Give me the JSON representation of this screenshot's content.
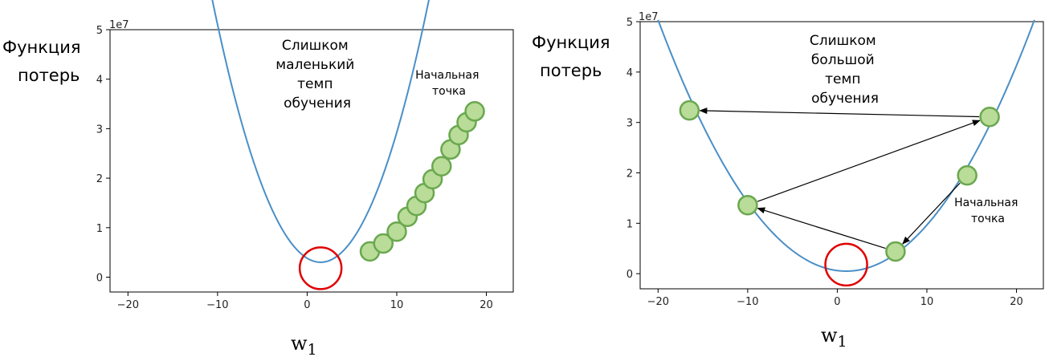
{
  "chart_data": [
    {
      "type": "line",
      "function": "loss",
      "curve": {
        "x_start": -20,
        "x_end": 22,
        "vertex_x": 1.5,
        "vertex_y": 0.3,
        "scale": 0.0363
      },
      "xlim": [
        -22,
        23
      ],
      "ylim": [
        -0.3,
        5
      ],
      "xticks": [
        -20,
        -10,
        0,
        10,
        20
      ],
      "xtick_labels": [
        "−20",
        "−10",
        "0",
        "10",
        "20"
      ],
      "yticks": [
        0,
        1,
        2,
        3,
        4,
        5
      ],
      "ytick_labels": [
        "0",
        "1",
        "2",
        "3",
        "4",
        "5"
      ],
      "scale_label": "1e7",
      "ylabel_lines": [
        "Функция",
        "потерь"
      ],
      "xlabel": "w",
      "xlabel_sub": "1",
      "annotation_lines": [
        "Слишком",
        "маленький",
        "темп",
        "обучения"
      ],
      "start_label_lines": [
        "Начальная",
        "точка"
      ],
      "minimum_marker": {
        "x": 1.5,
        "y": 0.18
      },
      "points": [
        {
          "x": 7.0,
          "y": 0.52
        },
        {
          "x": 8.5,
          "y": 0.68
        },
        {
          "x": 10.0,
          "y": 0.92
        },
        {
          "x": 11.2,
          "y": 1.22
        },
        {
          "x": 12.2,
          "y": 1.44
        },
        {
          "x": 13.1,
          "y": 1.7
        },
        {
          "x": 14.0,
          "y": 1.98
        },
        {
          "x": 15.0,
          "y": 2.24
        },
        {
          "x": 16.0,
          "y": 2.58
        },
        {
          "x": 16.9,
          "y": 2.87
        },
        {
          "x": 17.8,
          "y": 3.13
        },
        {
          "x": 18.7,
          "y": 3.35
        }
      ],
      "arrows": [],
      "colors": {
        "curve": "#4a8fc7",
        "point_fill": "#b9dc98",
        "point_stroke": "#6aa84f",
        "minimum": "#e00000"
      }
    },
    {
      "type": "line",
      "function": "loss",
      "curve": {
        "x_start": -20,
        "x_end": 22,
        "vertex_x": 1.0,
        "vertex_y": 0.05,
        "scale": 0.0113
      },
      "xlim": [
        -22,
        23
      ],
      "ylim": [
        -0.3,
        5
      ],
      "xticks": [
        -20,
        -10,
        0,
        10,
        20
      ],
      "xtick_labels": [
        "−20",
        "−10",
        "0",
        "10",
        "20"
      ],
      "yticks": [
        0,
        1,
        2,
        3,
        4,
        5
      ],
      "ytick_labels": [
        "0",
        "1",
        "2",
        "3",
        "4",
        "5"
      ],
      "scale_label": "1e7",
      "ylabel_lines": [
        "Функция",
        "потерь"
      ],
      "xlabel": "w",
      "xlabel_sub": "1",
      "annotation_lines": [
        "Слишком",
        "большой",
        "темп",
        "обучения"
      ],
      "start_label_lines": [
        "Начальная",
        "точка"
      ],
      "minimum_marker": {
        "x": 1.0,
        "y": 0.18
      },
      "points": [
        {
          "x": 14.5,
          "y": 1.95
        },
        {
          "x": 6.5,
          "y": 0.44
        },
        {
          "x": -10.0,
          "y": 1.36
        },
        {
          "x": 17.0,
          "y": 3.11
        },
        {
          "x": -16.5,
          "y": 3.24
        }
      ],
      "arrows": [
        {
          "from": 0,
          "to": 1
        },
        {
          "from": 1,
          "to": 2
        },
        {
          "from": 2,
          "to": 3
        },
        {
          "from": 3,
          "to": 4
        }
      ],
      "colors": {
        "curve": "#4a8fc7",
        "point_fill": "#b9dc98",
        "point_stroke": "#6aa84f",
        "minimum": "#e00000"
      }
    }
  ]
}
